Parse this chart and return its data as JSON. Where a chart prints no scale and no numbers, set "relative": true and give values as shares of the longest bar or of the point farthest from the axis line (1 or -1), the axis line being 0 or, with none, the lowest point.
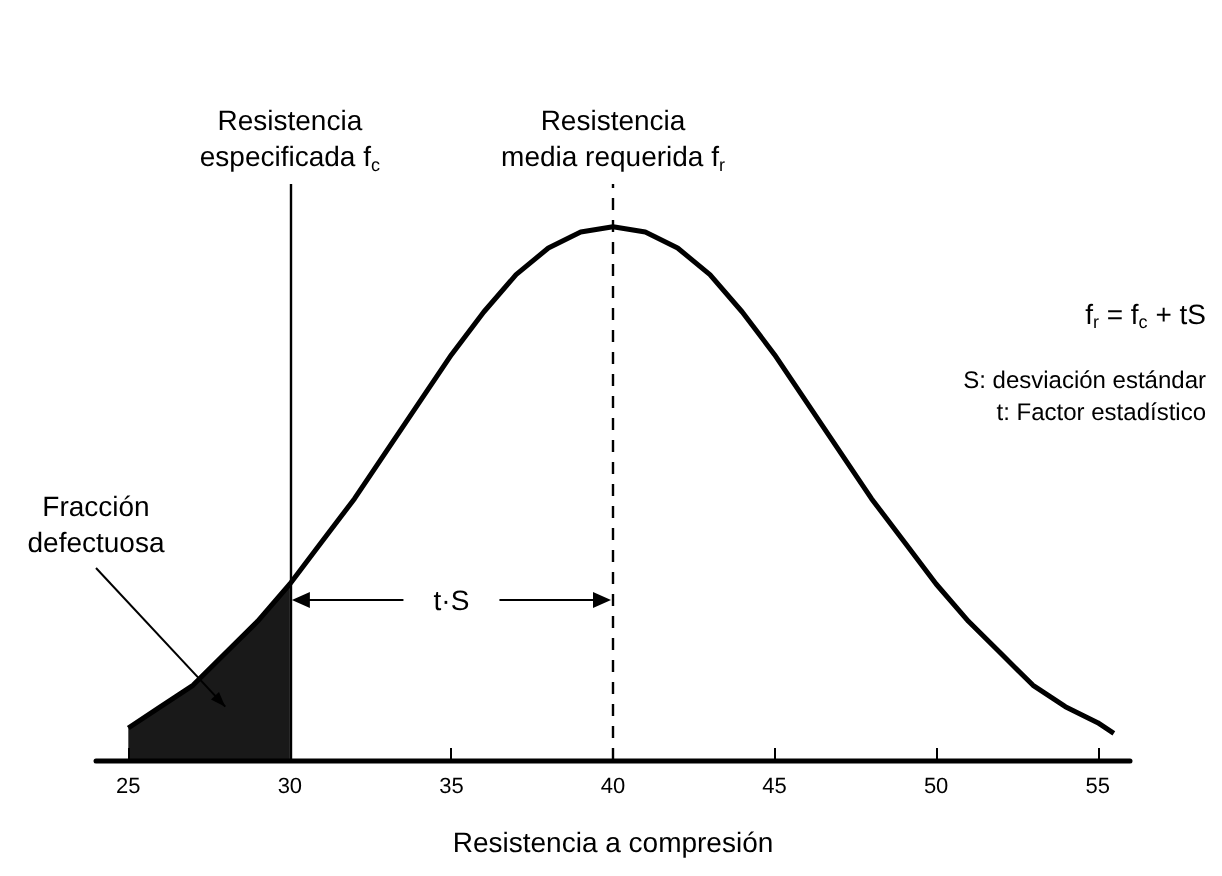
{
  "chart_data": {
    "type": "line",
    "xlabel": "Resistencia a compresión",
    "relative": true,
    "marker": "none",
    "xlim": [
      24,
      56
    ],
    "xticks": [
      25,
      30,
      35,
      40,
      45,
      50,
      55
    ],
    "series": [
      {
        "color": "#000000",
        "x": [
          25,
          26,
          27,
          28,
          29,
          30,
          31,
          32,
          33,
          34,
          35,
          36,
          37,
          38,
          39,
          40,
          41,
          42,
          43,
          44,
          45,
          46,
          47,
          48,
          49,
          50,
          51,
          52,
          53,
          54,
          55,
          55.5
        ],
        "values": [
          0.06,
          0.1,
          0.14,
          0.2,
          0.26,
          0.33,
          0.41,
          0.49,
          0.58,
          0.67,
          0.76,
          0.84,
          0.91,
          0.96,
          0.99,
          1,
          0.99,
          0.96,
          0.91,
          0.84,
          0.76,
          0.67,
          0.58,
          0.49,
          0.41,
          0.33,
          0.26,
          0.2,
          0.14,
          0.1,
          0.07,
          0.05
        ]
      },
      {
        "type": "area",
        "color": "#000000",
        "x": [
          25,
          26,
          27,
          28,
          29,
          30
        ],
        "values": [
          0.06,
          0.1,
          0.14,
          0.2,
          0.26,
          0.33
        ]
      }
    ],
    "ref_lines": [
      {
        "axis": "x",
        "value": 30,
        "label": "Resistencia especificada f$_{c}$",
        "line_style": "solid"
      },
      {
        "axis": "x",
        "value": 40,
        "label": "Resistencia media requerida f$_{r}$",
        "line_style": "dashed"
      }
    ],
    "annotations": [
      "t·S",
      "Fracción defectuosa",
      "f$_{r}$ = f$_{c}$ + tS",
      "S: desviación estándar",
      "t: Factor estadístico"
    ]
  }
}
